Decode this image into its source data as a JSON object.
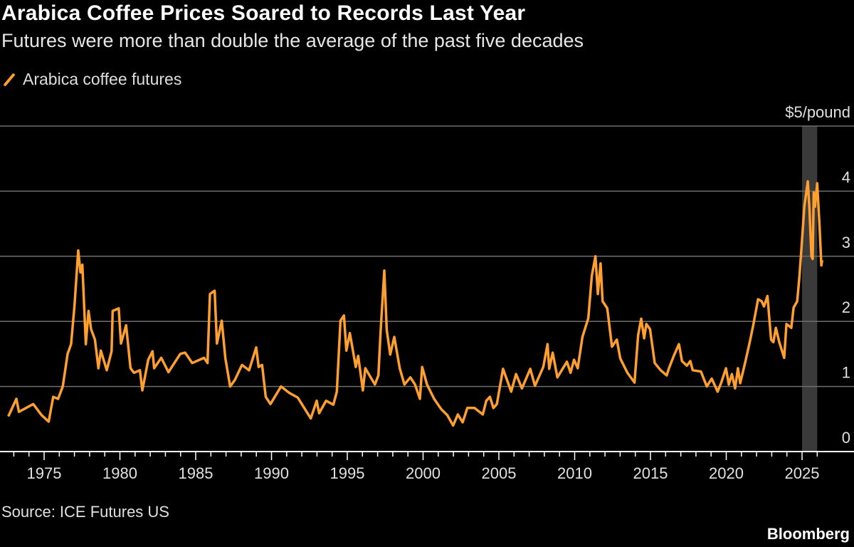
{
  "header": {
    "title": "Arabica Coffee Prices Soared to Records Last Year",
    "subtitle": "Futures were more than double the average of the past five decades"
  },
  "footer": {
    "source": "Source: ICE Futures US",
    "brand": "Bloomberg"
  },
  "colors": {
    "series": "#ff9f2f",
    "background": "#000000",
    "highlight": "#3a3a3a",
    "grid": "#6e6e6e"
  },
  "chart_data": {
    "type": "line",
    "title": "Arabica Coffee Prices Soared to Records Last Year",
    "subtitle": "Futures were more than double the average of the past five decades",
    "ylabel": "$5/pound",
    "y_unit_label": "$5/pound",
    "xlim": [
      1972.5,
      2026.5
    ],
    "ylim": [
      0,
      5
    ],
    "x_ticks": [
      1975,
      1980,
      1985,
      1990,
      1995,
      2000,
      2005,
      2010,
      2015,
      2020,
      2025
    ],
    "x_tick_labels": [
      "1975",
      "1980",
      "1985",
      "1990",
      "1995",
      "2000",
      "2005",
      "2010",
      "2015",
      "2020",
      "2025"
    ],
    "y_ticks": [
      0,
      1,
      2,
      3,
      4,
      5
    ],
    "y_tick_labels": [
      "0",
      "1",
      "2",
      "3",
      "4",
      "$5/pound"
    ],
    "grid": true,
    "legend": "top-left",
    "highlight_band": [
      2025,
      2026
    ],
    "series": [
      {
        "name": "Arabica coffee futures",
        "x": [
          1972.64,
          1973.17,
          1973.34,
          1974.28,
          1974.83,
          1975.3,
          1975.6,
          1975.92,
          1976.23,
          1976.55,
          1976.78,
          1977.0,
          1977.25,
          1977.4,
          1977.52,
          1977.75,
          1977.93,
          1978.1,
          1978.35,
          1978.58,
          1978.74,
          1979.13,
          1979.45,
          1979.52,
          1979.92,
          1980.07,
          1980.41,
          1980.7,
          1980.93,
          1981.32,
          1981.48,
          1981.87,
          1982.15,
          1982.26,
          1982.73,
          1983.2,
          1983.98,
          1984.3,
          1984.77,
          1985.55,
          1985.78,
          1985.94,
          1986.25,
          1986.4,
          1986.72,
          1986.96,
          1987.27,
          1987.58,
          1988.05,
          1988.52,
          1988.99,
          1989.15,
          1989.38,
          1989.62,
          1989.93,
          1990.63,
          1991.18,
          1991.73,
          1992.59,
          1992.98,
          1993.14,
          1993.6,
          1994.08,
          1994.31,
          1994.55,
          1994.78,
          1994.94,
          1995.17,
          1995.56,
          1995.72,
          1996.03,
          1996.19,
          1996.82,
          1997.05,
          1997.21,
          1997.44,
          1997.6,
          1997.83,
          1998.1,
          1998.46,
          1998.77,
          1999.16,
          1999.47,
          1999.79,
          1999.94,
          2000.26,
          2000.73,
          2001.2,
          2001.59,
          2001.98,
          2002.29,
          2002.61,
          2002.92,
          2003.39,
          2003.94,
          2004.17,
          2004.41,
          2004.64,
          2004.87,
          2005.27,
          2005.81,
          2006.13,
          2006.52,
          2007.07,
          2007.38,
          2007.93,
          2008.21,
          2008.32,
          2008.55,
          2008.86,
          2009.49,
          2009.73,
          2009.96,
          2010.2,
          2010.51,
          2010.9,
          2011.13,
          2011.37,
          2011.53,
          2011.71,
          2011.84,
          2012.15,
          2012.46,
          2012.78,
          2013.01,
          2013.48,
          2013.95,
          2014.19,
          2014.39,
          2014.58,
          2014.73,
          2014.97,
          2015.28,
          2015.67,
          2016.07,
          2016.22,
          2016.54,
          2016.88,
          2017.08,
          2017.4,
          2017.63,
          2017.79,
          2018.33,
          2018.72,
          2019.04,
          2019.43,
          2019.67,
          2019.98,
          2020.17,
          2020.37,
          2020.58,
          2020.77,
          2020.92,
          2021.24,
          2021.55,
          2021.78,
          2022.1,
          2022.33,
          2022.49,
          2022.72,
          2022.96,
          2023.11,
          2023.27,
          2023.5,
          2023.82,
          2023.97,
          2024.29,
          2024.44,
          2024.68,
          2024.83,
          2024.99,
          2025.15,
          2025.38,
          2025.49,
          2025.62,
          2025.7,
          2025.77,
          2025.85,
          2026.0,
          2026.16,
          2026.27,
          2026.33
        ],
        "y": [
          0.54,
          0.81,
          0.61,
          0.73,
          0.56,
          0.46,
          0.84,
          0.81,
          1.0,
          1.5,
          1.65,
          2.23,
          3.09,
          2.75,
          2.87,
          1.65,
          2.16,
          1.88,
          1.72,
          1.28,
          1.55,
          1.25,
          1.54,
          2.16,
          2.2,
          1.66,
          1.94,
          1.28,
          1.21,
          1.25,
          0.94,
          1.41,
          1.54,
          1.28,
          1.44,
          1.22,
          1.5,
          1.52,
          1.36,
          1.44,
          1.36,
          2.42,
          2.47,
          1.66,
          2.01,
          1.43,
          1.0,
          1.1,
          1.33,
          1.25,
          1.6,
          1.3,
          1.33,
          0.84,
          0.73,
          1.0,
          0.9,
          0.83,
          0.51,
          0.78,
          0.59,
          0.78,
          0.72,
          0.92,
          2.01,
          2.09,
          1.55,
          1.82,
          1.3,
          1.47,
          0.94,
          1.28,
          1.03,
          1.17,
          1.9,
          2.78,
          1.87,
          1.49,
          1.76,
          1.28,
          1.03,
          1.14,
          1.03,
          0.81,
          1.3,
          1.03,
          0.81,
          0.65,
          0.56,
          0.4,
          0.57,
          0.45,
          0.67,
          0.67,
          0.57,
          0.78,
          0.84,
          0.67,
          0.73,
          1.27,
          0.92,
          1.19,
          0.97,
          1.27,
          1.01,
          1.3,
          1.65,
          1.27,
          1.52,
          1.14,
          1.38,
          1.21,
          1.41,
          1.28,
          1.76,
          2.05,
          2.7,
          3.0,
          2.42,
          2.89,
          2.31,
          2.2,
          1.61,
          1.72,
          1.43,
          1.21,
          1.06,
          1.79,
          2.04,
          1.74,
          1.96,
          1.88,
          1.36,
          1.25,
          1.17,
          1.28,
          1.47,
          1.65,
          1.39,
          1.32,
          1.39,
          1.25,
          1.23,
          1.0,
          1.12,
          0.92,
          1.06,
          1.28,
          1.03,
          1.19,
          0.97,
          1.28,
          1.05,
          1.36,
          1.68,
          1.94,
          2.34,
          2.31,
          2.23,
          2.39,
          1.72,
          1.68,
          1.9,
          1.68,
          1.44,
          1.96,
          1.9,
          2.21,
          2.31,
          2.7,
          3.22,
          3.76,
          4.15,
          3.73,
          3.0,
          2.96,
          3.98,
          3.76,
          4.12,
          3.44,
          2.86,
          2.94
        ]
      }
    ]
  }
}
